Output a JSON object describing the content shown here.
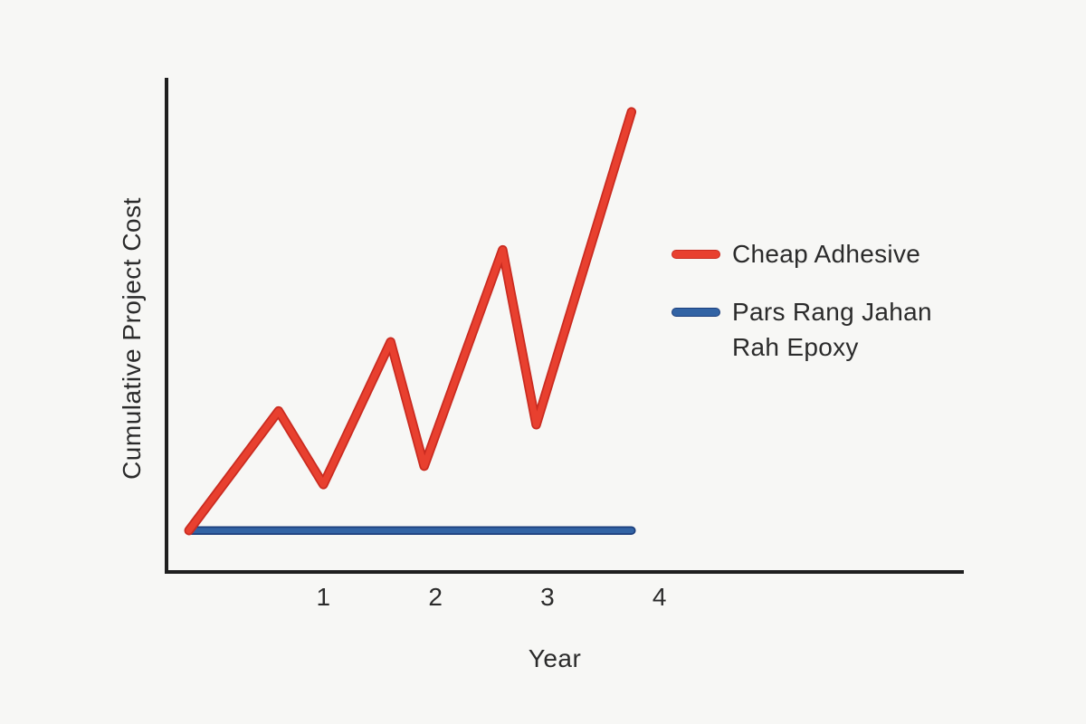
{
  "page": {
    "background_color": "#f7f7f5",
    "text_color": "#2b2b2b"
  },
  "chart_data": {
    "type": "line",
    "title": "",
    "xlabel": "Year",
    "ylabel": "Cumulative Project Cost",
    "x_ticks": [
      1,
      2,
      3,
      4
    ],
    "xlim": [
      -0.4,
      6.7
    ],
    "ylim": [
      0,
      10.7
    ],
    "grid": false,
    "legend_position": "right",
    "axis_color": "#1f1f1f",
    "series": [
      {
        "name": "Cheap Adhesive",
        "color": "#e8402f",
        "edge_color": "#ca2b20",
        "line_width": 7,
        "x": [
          -0.2,
          0.6,
          1.0,
          1.6,
          1.9,
          2.6,
          2.9,
          3.75
        ],
        "y": [
          0.9,
          3.5,
          1.9,
          5.0,
          2.3,
          7.0,
          3.2,
          10.0
        ]
      },
      {
        "name": "Pars Rang Jahan Rah Epoxy",
        "color": "#3263a4",
        "edge_color": "#1d3f7d",
        "line_width": 6,
        "x": [
          -0.2,
          3.75
        ],
        "y": [
          0.9,
          0.9
        ]
      }
    ]
  },
  "legend": {
    "items": [
      {
        "label": "Cheap Adhesive",
        "color": "#e8402f",
        "edge_color": "#ca2b20"
      },
      {
        "label": "Pars Rang Jahan Rah Epoxy",
        "color": "#3263a4",
        "edge_color": "#1d3f7d"
      }
    ]
  }
}
